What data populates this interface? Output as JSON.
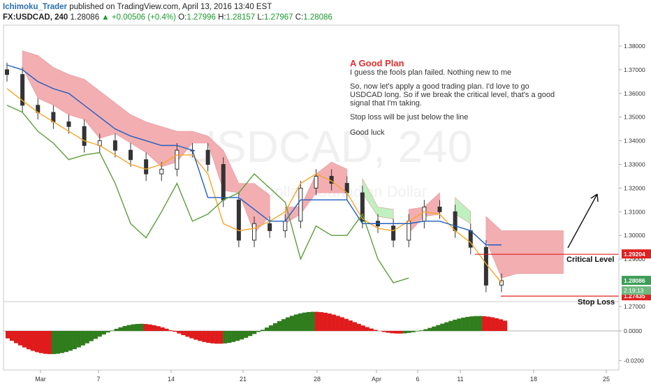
{
  "header": {
    "author": "Ichimoku_Trader",
    "published": "published on TradingView.com, April 13, 2016 13:40 EST",
    "symbol": "FX:USDCAD, 240",
    "price": "1.28086",
    "change_arrow": "▲",
    "change": "+0.00506 (+0.4%)",
    "o_label": "O:",
    "o": "1.27996",
    "h_label": "H:",
    "h": "1.28157",
    "l_label": "L:",
    "l": "1.27967",
    "c_label": "C:",
    "c": "1.28086"
  },
  "watermark": {
    "symbol": "USDCAD, 240",
    "subtitle": "U.S. Dollar / Canadian Dollar"
  },
  "note": {
    "title": "A Good Plan",
    "line1": "I guess the fools plan failed. Nothing new to me",
    "line2": "So, now let's apply a good trading plan. I'd love to go USDCAD long. So if we break the critical level, that's a good signal that I'm taking.",
    "line3": "Stop loss will be just below the line",
    "line4": "Good luck"
  },
  "chart_data": [
    {
      "type": "candlestick",
      "title": "FX:USDCAD, 240",
      "yaxis": {
        "ticks": [
          "1.38000",
          "1.37000",
          "1.36000",
          "1.35000",
          "1.34000",
          "1.33000",
          "1.32000",
          "1.31000",
          "1.30000",
          "1.29000",
          "1.27000"
        ],
        "tick_values": [
          1.38,
          1.37,
          1.36,
          1.35,
          1.34,
          1.33,
          1.32,
          1.31,
          1.3,
          1.29,
          1.27
        ],
        "ylim": [
          1.2655,
          1.3875
        ]
      },
      "xaxis": {
        "ticks": [
          "Mar",
          "7",
          "14",
          "21",
          "28",
          "Apr",
          "6",
          "11",
          "18",
          "25"
        ]
      },
      "grid": false,
      "price_series": {
        "x": [
          "Feb 29",
          "Mar 1",
          "Mar 2",
          "Mar 3",
          "Mar 4",
          "Mar 7",
          "Mar 8",
          "Mar 9",
          "Mar 10",
          "Mar 11",
          "Mar 14",
          "Mar 15",
          "Mar 16",
          "Mar 17",
          "Mar 18",
          "Mar 21",
          "Mar 22",
          "Mar 23",
          "Mar 24",
          "Mar 25",
          "Mar 28",
          "Mar 29",
          "Mar 30",
          "Mar 31",
          "Apr 1",
          "Apr 4",
          "Apr 5",
          "Apr 6",
          "Apr 7",
          "Apr 8",
          "Apr 11",
          "Apr 12",
          "Apr 13"
        ],
        "close": [
          1.368,
          1.355,
          1.352,
          1.348,
          1.346,
          1.338,
          1.34,
          1.336,
          1.332,
          1.326,
          1.328,
          1.336,
          1.336,
          1.33,
          1.315,
          1.298,
          1.305,
          1.302,
          1.306,
          1.32,
          1.325,
          1.322,
          1.318,
          1.306,
          1.304,
          1.298,
          1.306,
          1.312,
          1.31,
          1.302,
          1.295,
          1.279,
          1.2809
        ]
      },
      "lines": [
        {
          "name": "Tenkan",
          "color": "#f5a623",
          "values": [
            1.362,
            1.357,
            1.352,
            1.348,
            1.344,
            1.34,
            1.338,
            1.334,
            1.33,
            1.328,
            1.33,
            1.334,
            1.334,
            1.326,
            1.305,
            1.302,
            1.303,
            1.306,
            1.31,
            1.322,
            1.326,
            1.323,
            1.318,
            1.307,
            1.303,
            1.302,
            1.306,
            1.31,
            1.309,
            1.302,
            1.297,
            1.288,
            1.28
          ]
        },
        {
          "name": "Kijun",
          "color": "#1f5fbf",
          "values": [
            1.372,
            1.37,
            1.365,
            1.362,
            1.36,
            1.355,
            1.35,
            1.345,
            1.342,
            1.34,
            1.338,
            1.338,
            1.336,
            1.316,
            1.316,
            1.316,
            1.311,
            1.306,
            1.306,
            1.315,
            1.315,
            1.315,
            1.315,
            1.305,
            1.305,
            1.305,
            1.305,
            1.306,
            1.306,
            1.304,
            1.302,
            1.296,
            1.296
          ]
        },
        {
          "name": "Chikou",
          "color": "#5a9e3a",
          "values": [
            1.355,
            1.352,
            1.344,
            1.339,
            1.332,
            1.334,
            1.335,
            1.322,
            1.305,
            1.299,
            1.31,
            1.322,
            1.306,
            1.309,
            1.315,
            1.318,
            1.326,
            1.32,
            1.314,
            1.29,
            1.304,
            1.3,
            1.3,
            1.309,
            1.29,
            1.28,
            1.282
          ]
        }
      ],
      "cloud": {
        "bearish_color": "#f2a6aa",
        "bullish_color": "#b8f0b8"
      },
      "levels": [
        {
          "name": "Critical Level",
          "value": "1.29204",
          "color": "#e02020"
        },
        {
          "name": "Stop Loss",
          "value": "1.27435",
          "color": "#e02020"
        }
      ],
      "price_label": {
        "value": "1.28086",
        "countdown": "2:19:13",
        "color": "#3c9d57"
      }
    },
    {
      "type": "histogram",
      "yaxis": {
        "ticks": [
          "0.0000",
          "-0.0200"
        ],
        "tick_values": [
          0,
          -0.02
        ]
      },
      "positive_color": "#2f7d1c",
      "negative_color": "#e01b1b"
    }
  ]
}
